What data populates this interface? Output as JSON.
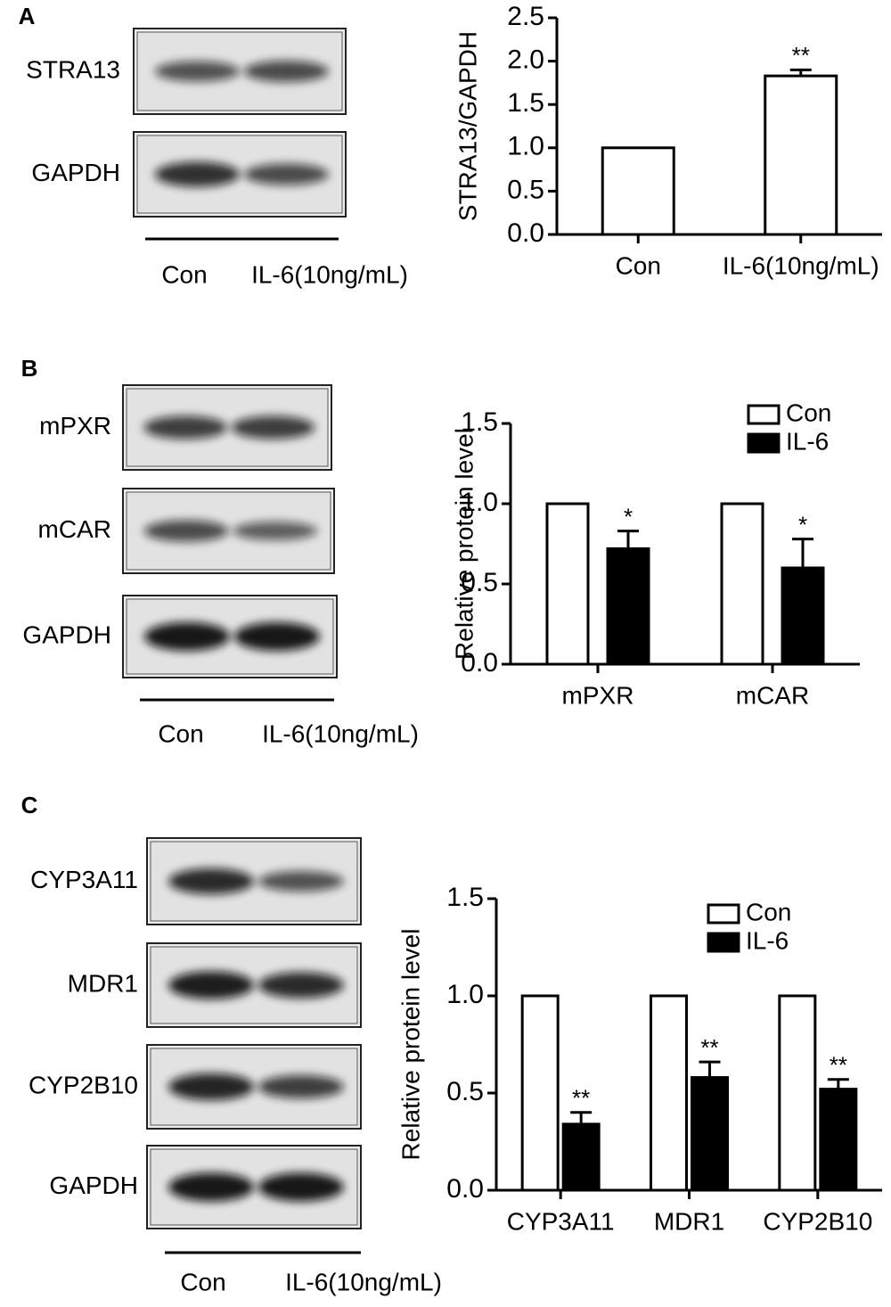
{
  "chart_data": [
    {
      "type": "bar",
      "ylabel": "STRA13/GAPDH",
      "categories": [
        "Con",
        "IL-6(10ng/mL)"
      ],
      "values": [
        1.0,
        1.83
      ],
      "errors": [
        0,
        0.07
      ],
      "significance": [
        null,
        "**"
      ],
      "color": "#ffffff",
      "ylim": [
        0,
        2.5
      ],
      "yticks": [
        {
          "value": 0,
          "label": "0.0"
        },
        0.5,
        {
          "value": 1,
          "label": "1.0"
        },
        1.5,
        {
          "value": 2,
          "label": "2.0"
        },
        2.5
      ]
    },
    {
      "type": "bar",
      "ylabel": "Relative protein level",
      "categories": [
        "mPXR",
        "mCAR"
      ],
      "series": [
        {
          "name": "Con",
          "color": "#ffffff",
          "values": [
            1.0,
            1.0
          ]
        },
        {
          "name": "IL-6",
          "color": "#000000",
          "values": [
            0.72,
            0.6
          ],
          "errors": [
            0.11,
            0.18
          ],
          "significance": [
            "*",
            "*"
          ]
        }
      ],
      "ylim": [
        0,
        1.5
      ],
      "yticks": [
        {
          "value": 0,
          "label": "0.0"
        },
        0.5,
        {
          "value": 1,
          "label": "1.0"
        },
        1.5
      ],
      "legend": "top-right"
    },
    {
      "type": "bar",
      "ylabel": "Relative protein level",
      "categories": [
        "CYP3A11",
        "MDR1",
        "CYP2B10"
      ],
      "series": [
        {
          "name": "Con",
          "color": "#ffffff",
          "values": [
            1.0,
            1.0,
            1.0
          ]
        },
        {
          "name": "IL-6",
          "color": "#000000",
          "values": [
            0.34,
            0.58,
            0.52
          ],
          "errors": [
            0.06,
            0.08,
            0.05
          ],
          "significance": [
            "**",
            "**",
            "**"
          ]
        }
      ],
      "ylim": [
        0,
        1.5
      ],
      "yticks": [
        {
          "value": 0,
          "label": "0.0"
        },
        0.5,
        {
          "value": 1,
          "label": "1.0"
        },
        1.5
      ],
      "legend": "top-right"
    }
  ],
  "blots": [
    {
      "panel": "A",
      "rows": [
        "STRA13",
        "GAPDH"
      ],
      "lanes": [
        "Con",
        "IL-6(10ng/mL)"
      ]
    },
    {
      "panel": "B",
      "rows": [
        "mPXR",
        "mCAR",
        "GAPDH"
      ],
      "lanes": [
        "Con",
        "IL-6(10ng/mL)"
      ]
    },
    {
      "panel": "C",
      "rows": [
        "CYP3A11",
        "MDR1",
        "CYP2B10",
        "GAPDH"
      ],
      "lanes": [
        "Con",
        "IL-6(10ng/mL)"
      ]
    }
  ]
}
